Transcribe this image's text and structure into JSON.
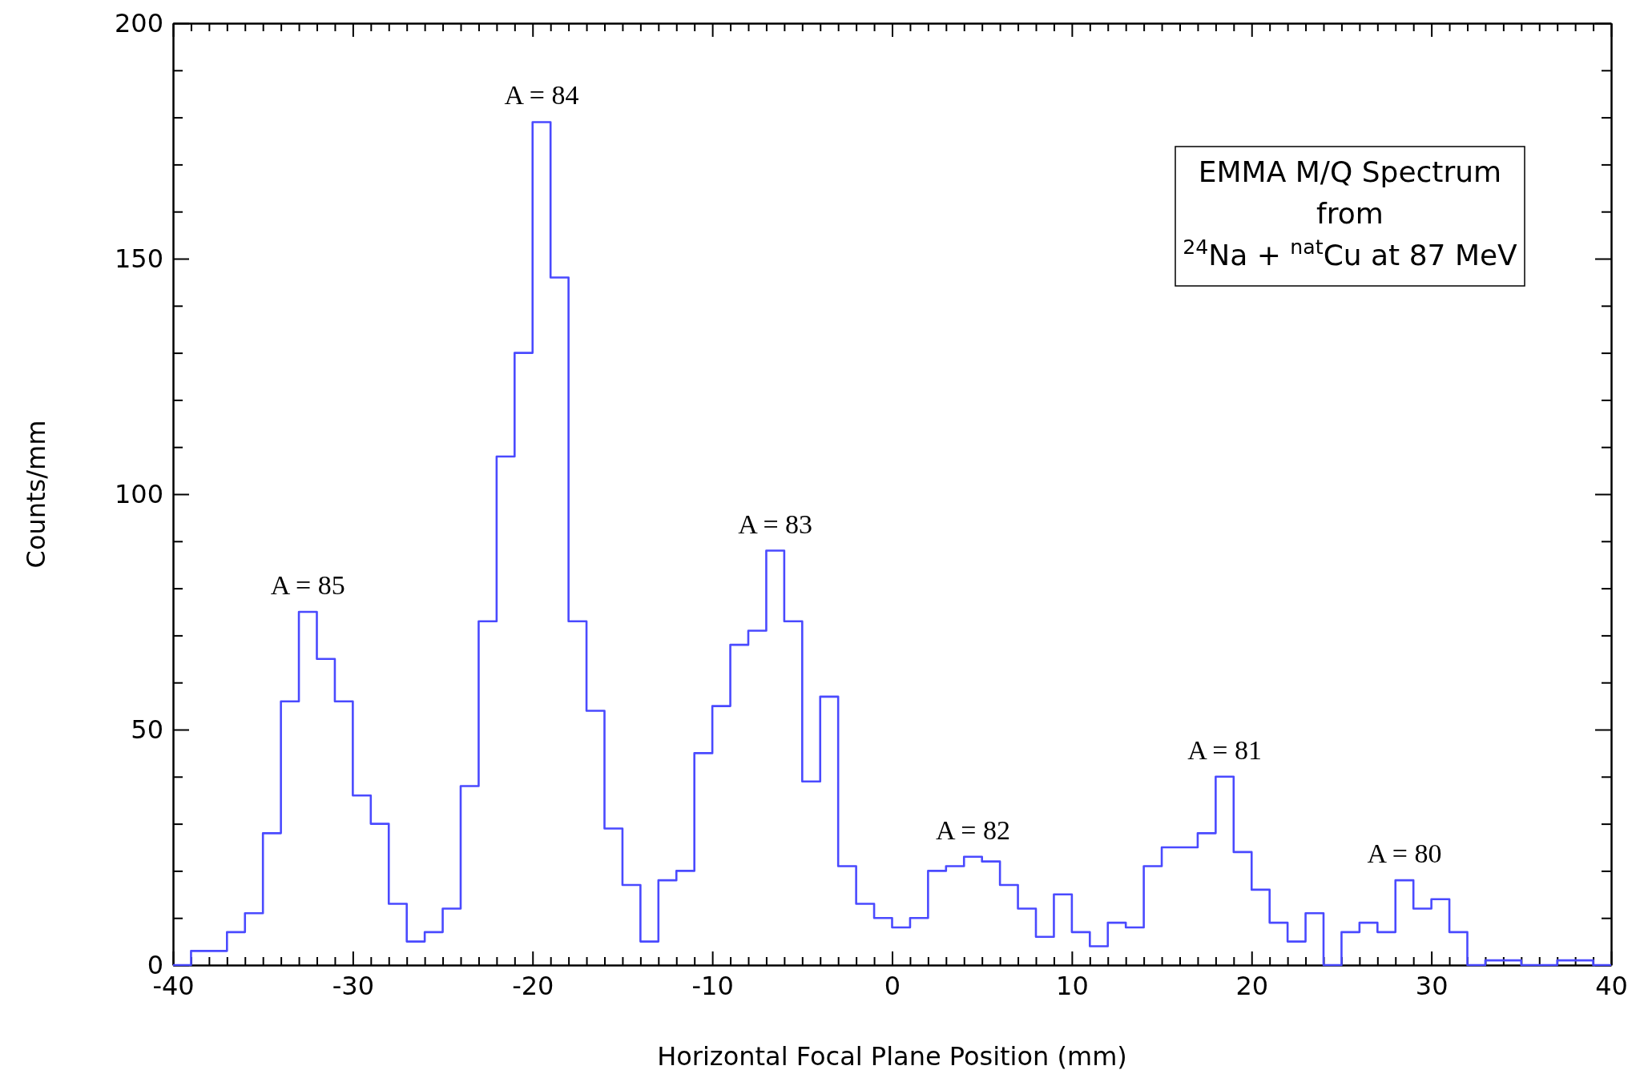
{
  "chart_data": {
    "type": "histogram",
    "xlabel": "Horizontal Focal Plane Position (mm)",
    "ylabel": "Counts/mm",
    "color": "#4a4aff",
    "bins": [
      -40,
      -39,
      -38,
      -37,
      -36,
      -35,
      -34,
      -33,
      -32,
      -31,
      -30,
      -29,
      -28,
      -27,
      -26,
      -25,
      -24,
      -23,
      -22,
      -21,
      -20,
      -19,
      -18,
      -17,
      -16,
      -15,
      -14,
      -13,
      -12,
      -11,
      -10,
      -9,
      -8,
      -7,
      -6,
      -5,
      -4,
      -3,
      -2,
      -1,
      0,
      1,
      2,
      3,
      4,
      5,
      6,
      7,
      8,
      9,
      10,
      11,
      12,
      13,
      14,
      15,
      16,
      17,
      18,
      19,
      20,
      21,
      22,
      23,
      24,
      25,
      26,
      27,
      28,
      29,
      30,
      31,
      32,
      33,
      34,
      35,
      36,
      37,
      38,
      39,
      40
    ],
    "values": [
      0,
      3,
      3,
      7,
      11,
      28,
      56,
      75,
      65,
      56,
      36,
      30,
      13,
      5,
      7,
      12,
      38,
      73,
      108,
      130,
      179,
      146,
      73,
      54,
      29,
      17,
      5,
      18,
      20,
      45,
      55,
      68,
      71,
      88,
      73,
      39,
      57,
      21,
      13,
      10,
      8,
      10,
      20,
      21,
      23,
      22,
      17,
      12,
      6,
      15,
      7,
      4,
      9,
      8,
      21,
      25,
      25,
      28,
      40,
      24,
      16,
      9,
      5,
      11,
      0,
      7,
      9,
      7,
      18,
      12,
      14,
      7,
      0,
      1,
      1,
      0,
      0,
      1,
      1,
      0
    ],
    "xlim": [
      -40,
      40
    ],
    "ylim": [
      0,
      200
    ],
    "xticks": [
      -40,
      {
        "value": -39,
        "label": null
      },
      {
        "value": -38,
        "label": null
      },
      {
        "value": -37,
        "label": null
      },
      {
        "value": -36,
        "label": null
      },
      {
        "value": -35,
        "label": null
      },
      {
        "value": -34,
        "label": null
      },
      {
        "value": -33,
        "label": null
      },
      {
        "value": -32,
        "label": null
      },
      {
        "value": -31,
        "label": null
      },
      -30,
      {
        "value": -29,
        "label": null
      },
      {
        "value": -28,
        "label": null
      },
      {
        "value": -27,
        "label": null
      },
      {
        "value": -26,
        "label": null
      },
      {
        "value": -25,
        "label": null
      },
      {
        "value": -24,
        "label": null
      },
      {
        "value": -23,
        "label": null
      },
      {
        "value": -22,
        "label": null
      },
      {
        "value": -21,
        "label": null
      },
      -20,
      {
        "value": -19,
        "label": null
      },
      {
        "value": -18,
        "label": null
      },
      {
        "value": -17,
        "label": null
      },
      {
        "value": -16,
        "label": null
      },
      {
        "value": -15,
        "label": null
      },
      {
        "value": -14,
        "label": null
      },
      {
        "value": -13,
        "label": null
      },
      {
        "value": -12,
        "label": null
      },
      {
        "value": -11,
        "label": null
      },
      -10,
      {
        "value": -9,
        "label": null
      },
      {
        "value": -8,
        "label": null
      },
      {
        "value": -7,
        "label": null
      },
      {
        "value": -6,
        "label": null
      },
      {
        "value": -5,
        "label": null
      },
      {
        "value": -4,
        "label": null
      },
      {
        "value": -3,
        "label": null
      },
      {
        "value": -2,
        "label": null
      },
      {
        "value": -1,
        "label": null
      },
      0,
      {
        "value": 1,
        "label": null
      },
      {
        "value": 2,
        "label": null
      },
      {
        "value": 3,
        "label": null
      },
      {
        "value": 4,
        "label": null
      },
      {
        "value": 5,
        "label": null
      },
      {
        "value": 6,
        "label": null
      },
      {
        "value": 7,
        "label": null
      },
      {
        "value": 8,
        "label": null
      },
      {
        "value": 9,
        "label": null
      },
      10,
      {
        "value": 11,
        "label": null
      },
      {
        "value": 12,
        "label": null
      },
      {
        "value": 13,
        "label": null
      },
      {
        "value": 14,
        "label": null
      },
      {
        "value": 15,
        "label": null
      },
      {
        "value": 16,
        "label": null
      },
      {
        "value": 17,
        "label": null
      },
      {
        "value": 18,
        "label": null
      },
      {
        "value": 19,
        "label": null
      },
      20,
      {
        "value": 21,
        "label": null
      },
      {
        "value": 22,
        "label": null
      },
      {
        "value": 23,
        "label": null
      },
      {
        "value": 24,
        "label": null
      },
      {
        "value": 25,
        "label": null
      },
      {
        "value": 26,
        "label": null
      },
      {
        "value": 27,
        "label": null
      },
      {
        "value": 28,
        "label": null
      },
      {
        "value": 29,
        "label": null
      },
      30,
      {
        "value": 31,
        "label": null
      },
      {
        "value": 32,
        "label": null
      },
      {
        "value": 33,
        "label": null
      },
      {
        "value": 34,
        "label": null
      },
      {
        "value": 35,
        "label": null
      },
      {
        "value": 36,
        "label": null
      },
      {
        "value": 37,
        "label": null
      },
      {
        "value": 38,
        "label": null
      },
      {
        "value": 39,
        "label": null
      },
      40
    ],
    "yticks": [
      0,
      {
        "value": 10,
        "label": null
      },
      {
        "value": 20,
        "label": null
      },
      {
        "value": 30,
        "label": null
      },
      {
        "value": 40,
        "label": null
      },
      50,
      {
        "value": 60,
        "label": null
      },
      {
        "value": 70,
        "label": null
      },
      {
        "value": 80,
        "label": null
      },
      {
        "value": 90,
        "label": null
      },
      100,
      {
        "value": 110,
        "label": null
      },
      {
        "value": 120,
        "label": null
      },
      {
        "value": 130,
        "label": null
      },
      {
        "value": 140,
        "label": null
      },
      150,
      {
        "value": 160,
        "label": null
      },
      {
        "value": 170,
        "label": null
      },
      {
        "value": 180,
        "label": null
      },
      {
        "value": 190,
        "label": null
      },
      200
    ],
    "grid": false,
    "annotations": [
      {
        "text": "A = 85",
        "x": -32.5,
        "y": 75
      },
      {
        "text": "A = 84",
        "x": -19.5,
        "y": 179
      },
      {
        "text": "A = 83",
        "x": -6.5,
        "y": 88
      },
      {
        "text": "A = 82",
        "x": 4.5,
        "y": 23
      },
      {
        "text": "A = 81",
        "x": 18.5,
        "y": 40
      },
      {
        "text": "A = 80",
        "x": 28.5,
        "y": 18
      },
      "EMMA M/Q Spectrum\nfrom\n$^{24}$Na + $^{nat}$Cu at 87 MeV"
    ]
  }
}
